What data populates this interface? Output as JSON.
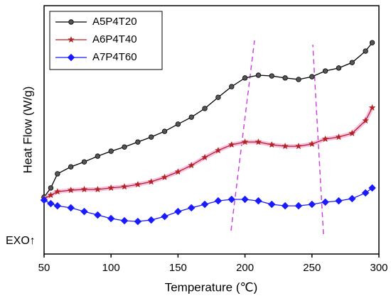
{
  "chart_data": {
    "type": "line",
    "xlabel": "Temperature (℃)",
    "ylabel": "Heat Flow (W/g)",
    "annotation": "EXO↑",
    "x": [
      50,
      55,
      60,
      70,
      80,
      90,
      100,
      110,
      120,
      130,
      140,
      150,
      160,
      170,
      180,
      190,
      200,
      210,
      220,
      230,
      240,
      250,
      260,
      270,
      280,
      290,
      295
    ],
    "series": [
      {
        "name": "A5P4T20",
        "color": "#000000",
        "marker": "circle",
        "values": [
          22.9,
          26.6,
          32.3,
          35.1,
          37.1,
          39.4,
          41.4,
          43.1,
          45.1,
          47.1,
          49.4,
          52.3,
          55.1,
          58.6,
          63.1,
          67.4,
          70.9,
          72,
          71.7,
          70.9,
          70.3,
          71.4,
          73.7,
          74.9,
          77.1,
          81.7,
          85.1
        ]
      },
      {
        "name": "A6P4T40",
        "color": "#b22222",
        "marker": "star",
        "values": [
          22.3,
          23.7,
          25.1,
          25.7,
          26,
          26,
          26.6,
          27.1,
          28,
          29.1,
          30.9,
          33.1,
          35.7,
          38.9,
          41.7,
          44,
          45.1,
          45.1,
          44,
          43.4,
          43.4,
          44.3,
          46.3,
          47.1,
          48.6,
          53.7,
          58.9
        ]
      },
      {
        "name": "A7P4T60",
        "color": "#1a1aff",
        "marker": "diamond",
        "values": [
          21.7,
          20.3,
          19.4,
          18.6,
          17.1,
          15.7,
          14.3,
          13.4,
          13.1,
          13.7,
          15.1,
          17.1,
          18.6,
          20,
          21.4,
          22,
          22,
          21.4,
          20,
          19.4,
          19.4,
          20,
          20.9,
          21.4,
          22.3,
          24.6,
          26.6
        ]
      }
    ],
    "xlim": [
      50,
      300
    ],
    "xticks": [
      50,
      100,
      150,
      200,
      250,
      300
    ],
    "ylim": [
      0,
      100
    ],
    "legend": "upper left"
  }
}
